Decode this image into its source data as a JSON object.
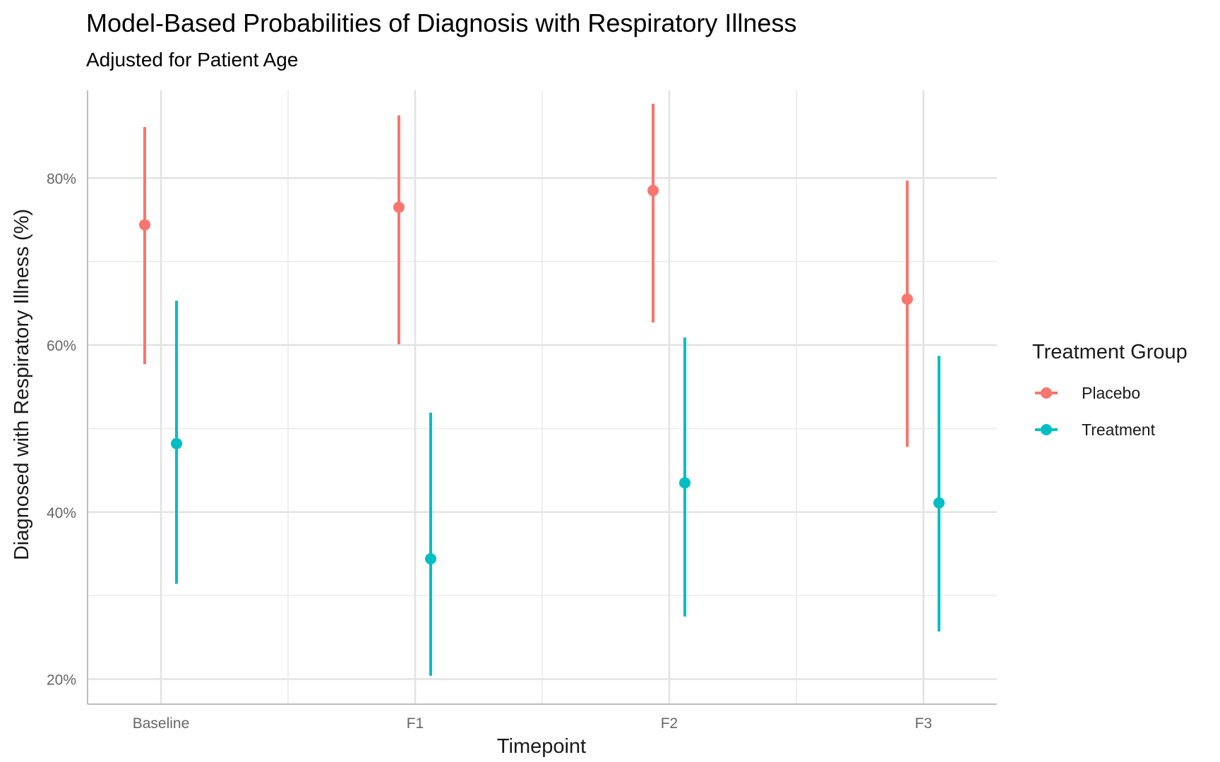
{
  "chart_data": {
    "type": "scatter",
    "title": "Model-Based Probabilities of Diagnosis with Respiratory Illness",
    "subtitle": "Adjusted for Patient Age",
    "xlabel": "Timepoint",
    "ylabel": "Diagnosed with Respiratory Illness (%)",
    "categories": [
      "Baseline",
      "F1",
      "F2",
      "F3"
    ],
    "ylim": [
      0.17,
      0.905
    ],
    "yticks": [
      0.2,
      0.4,
      0.6,
      0.8
    ],
    "ytick_labels": [
      "20%",
      "40%",
      "60%",
      "80%"
    ],
    "grid": true,
    "legend_title": "Treatment Group",
    "legend_position": "right",
    "series": [
      {
        "name": "Placebo",
        "color": "#F8766D",
        "values": [
          0.744,
          0.765,
          0.785,
          0.655
        ],
        "lower": [
          0.577,
          0.601,
          0.627,
          0.478
        ],
        "upper": [
          0.861,
          0.875,
          0.889,
          0.797
        ]
      },
      {
        "name": "Treatment",
        "color": "#00BFC4",
        "values": [
          0.482,
          0.344,
          0.435,
          0.411
        ],
        "lower": [
          0.314,
          0.204,
          0.275,
          0.257
        ],
        "upper": [
          0.653,
          0.519,
          0.609,
          0.587
        ]
      }
    ]
  }
}
